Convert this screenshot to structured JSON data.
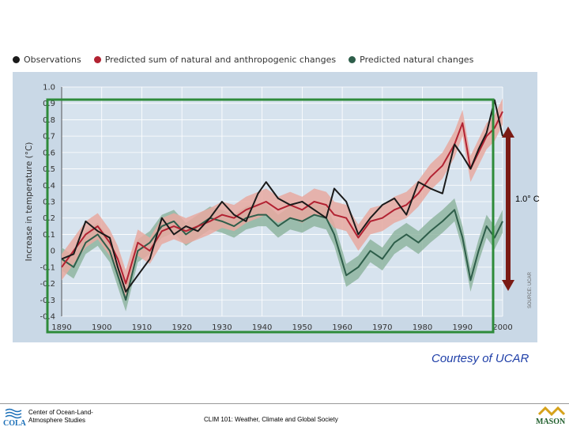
{
  "legend": {
    "observations": "Observations",
    "predicted_sum": "Predicted sum of natural and anthropogenic changes",
    "predicted_natural": "Predicted natural changes"
  },
  "colors": {
    "observations": "#1a1a1a",
    "predicted_sum": "#b22232",
    "predicted_sum_band": "#e8a9a0",
    "predicted_natural": "#2e5e4a",
    "predicted_natural_band": "#8fb5a0",
    "plot_background": "#c9d8e6",
    "highlight_box": "#2e8b3a",
    "arrow": "#7a1a14"
  },
  "annotations": {
    "arrow_label": "1.0° C",
    "source_vertical": "SOURCE: UCAR",
    "courtesy": "Courtesy of UCAR"
  },
  "footer": {
    "org_line1": "Center of Ocean-Land-",
    "org_line2": "Atmosphere Studies",
    "cola_text": "COLA",
    "course": "CLIM 101: Weather, Climate and Global Society",
    "mason": "MASON"
  },
  "chart_data": {
    "type": "line",
    "title": "",
    "xlabel": "",
    "ylabel": "Increase in temperature (°C)",
    "xlim": [
      1890,
      2000
    ],
    "ylim": [
      -0.4,
      1.0
    ],
    "grid": true,
    "legend_position": "top",
    "x_ticks": [
      1890,
      1900,
      1910,
      1920,
      1930,
      1940,
      1950,
      1960,
      1970,
      1980,
      1990,
      2000
    ],
    "x_tick_labels": [
      "1890",
      "1900",
      "1910",
      "1920",
      "1930",
      "1940",
      "1950",
      "1960",
      "1970",
      "1980",
      "1990",
      "2000"
    ],
    "y_ticks": [
      -0.4,
      -0.3,
      -0.2,
      -0.1,
      0.0,
      0.1,
      0.2,
      0.3,
      0.4,
      0.5,
      0.6,
      0.7,
      0.8,
      0.9,
      1.0
    ],
    "y_tick_labels": [
      "-0.4",
      "-0.3",
      "-0.2",
      "-0.1",
      "0",
      "0.1",
      "0.2",
      "0.3",
      "0.4",
      "0.5",
      "0.6",
      "0.7",
      "0.8",
      "0.9",
      "1.0"
    ],
    "x": [
      1890,
      1893,
      1896,
      1899,
      1902,
      1904,
      1906,
      1909,
      1912,
      1915,
      1918,
      1921,
      1924,
      1927,
      1930,
      1933,
      1936,
      1939,
      1941,
      1944,
      1947,
      1950,
      1953,
      1956,
      1958,
      1961,
      1964,
      1967,
      1970,
      1973,
      1976,
      1979,
      1982,
      1985,
      1988,
      1990,
      1992,
      1994,
      1996,
      1998,
      2000
    ],
    "series": [
      {
        "name": "Observations",
        "values": [
          -0.05,
          -0.02,
          0.18,
          0.12,
          0.08,
          -0.1,
          -0.25,
          -0.15,
          -0.05,
          0.2,
          0.1,
          0.15,
          0.12,
          0.2,
          0.3,
          0.22,
          0.18,
          0.35,
          0.42,
          0.32,
          0.28,
          0.3,
          0.25,
          0.2,
          0.38,
          0.3,
          0.1,
          0.2,
          0.28,
          0.32,
          0.22,
          0.42,
          0.38,
          0.35,
          0.65,
          0.58,
          0.5,
          0.62,
          0.72,
          0.92,
          0.7
        ]
      },
      {
        "name": "Predicted sum of natural and anthropogenic changes",
        "values": [
          -0.1,
          0.0,
          0.1,
          0.15,
          0.05,
          -0.05,
          -0.2,
          0.05,
          0.0,
          0.12,
          0.15,
          0.12,
          0.15,
          0.18,
          0.22,
          0.2,
          0.25,
          0.28,
          0.3,
          0.25,
          0.28,
          0.25,
          0.3,
          0.28,
          0.22,
          0.2,
          0.08,
          0.18,
          0.2,
          0.25,
          0.28,
          0.35,
          0.45,
          0.52,
          0.65,
          0.78,
          0.5,
          0.6,
          0.7,
          0.75,
          0.85
        ]
      },
      {
        "name": "Predicted natural changes",
        "values": [
          -0.05,
          -0.1,
          0.05,
          0.1,
          0.0,
          -0.15,
          -0.3,
          0.0,
          0.05,
          0.15,
          0.18,
          0.1,
          0.15,
          0.2,
          0.18,
          0.15,
          0.2,
          0.22,
          0.22,
          0.15,
          0.2,
          0.18,
          0.22,
          0.2,
          0.1,
          -0.15,
          -0.1,
          0.0,
          -0.05,
          0.05,
          0.1,
          0.05,
          0.12,
          0.18,
          0.25,
          0.08,
          -0.18,
          0.0,
          0.15,
          0.08,
          0.18
        ]
      }
    ]
  }
}
